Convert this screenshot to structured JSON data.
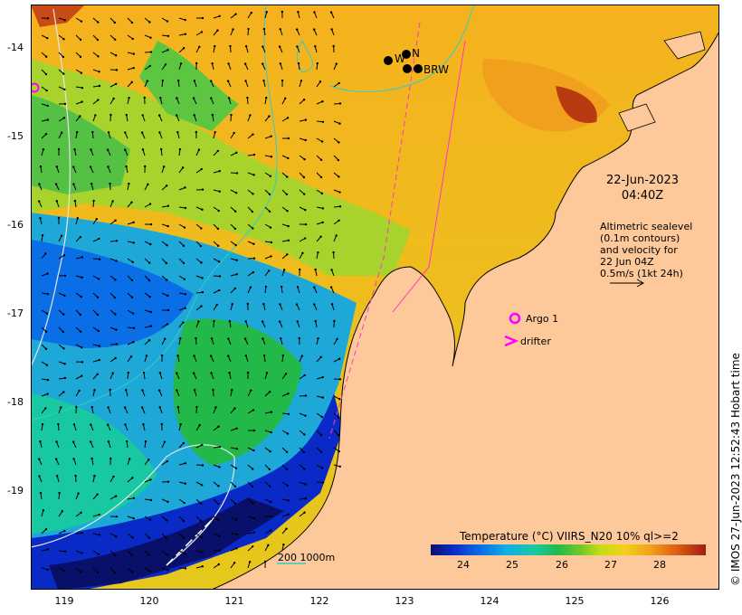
{
  "map": {
    "y_ticks": [
      "-14",
      "-15",
      "-16",
      "-17",
      "-18",
      "-19"
    ],
    "x_ticks": [
      "119",
      "120",
      "121",
      "122",
      "123",
      "124",
      "125",
      "126"
    ],
    "date_line1": "22-Jun-2023",
    "date_line2": "04:40Z",
    "altimetry_text": [
      "Altimetric sealevel",
      "(0.1m contours)",
      "and velocity for",
      "22 Jun 04Z",
      "0.5m/s (1kt 24h)"
    ],
    "argo_label": "Argo 1",
    "drifter_label": "drifter",
    "scale_label": "200  1000m",
    "site_labels": {
      "w": "W",
      "n": "N",
      "brw": "BRW"
    },
    "copyright": "© IMOS 27-Jun-2023 12:52:43 Hobart time"
  },
  "colorbar": {
    "title": "Temperature (°C) VIIRS_N20 10% ql>=2",
    "ticks": [
      "24",
      "25",
      "26",
      "27",
      "28"
    ],
    "range": [
      23.2,
      28.8
    ]
  },
  "colors": {
    "land": "#fdc89a",
    "contour": "#33cccc",
    "altimetry_contour": "#e6e6e6",
    "track": "#ff33cc",
    "argo": "#ff00ff"
  },
  "icons": {
    "argo": "argo-float-circle-icon",
    "drifter": "drifter-chevron-icon",
    "site": "mooring-site-dot-icon"
  }
}
